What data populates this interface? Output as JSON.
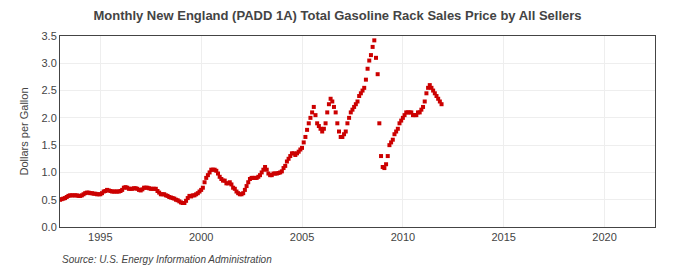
{
  "chart_data": {
    "type": "scatter",
    "title": "Monthly New England (PADD 1A) Total Gasoline Rack Sales Price by All Sellers",
    "ylabel": "Dollars per Gallon",
    "annotations": [
      "Source: U.S. Energy Information Administration"
    ],
    "color": "#cc0000",
    "marker": "square",
    "grid": true,
    "xlim": [
      1993.0,
      2022.5
    ],
    "ylim": [
      0.0,
      3.5
    ],
    "xticks": [
      1995,
      2000,
      2005,
      2010,
      2015,
      2020
    ],
    "yticks": [
      {
        "value": 0.0,
        "label": "0.0"
      },
      0.5,
      {
        "value": 1.0,
        "label": "1.0"
      },
      1.5,
      {
        "value": 2.0,
        "label": "2.0"
      },
      2.5,
      {
        "value": 3.0,
        "label": "3.0"
      },
      3.5
    ],
    "x": [
      1993.0,
      1993.083,
      1993.167,
      1993.25,
      1993.333,
      1993.417,
      1993.5,
      1993.583,
      1993.667,
      1993.75,
      1993.833,
      1993.917,
      1994.0,
      1994.083,
      1994.167,
      1994.25,
      1994.333,
      1994.417,
      1994.5,
      1994.583,
      1994.667,
      1994.75,
      1994.833,
      1994.917,
      1995.0,
      1995.083,
      1995.167,
      1995.25,
      1995.333,
      1995.417,
      1995.5,
      1995.583,
      1995.667,
      1995.75,
      1995.833,
      1995.917,
      1996.0,
      1996.083,
      1996.167,
      1996.25,
      1996.333,
      1996.417,
      1996.5,
      1996.583,
      1996.667,
      1996.75,
      1996.833,
      1996.917,
      1997.0,
      1997.083,
      1997.167,
      1997.25,
      1997.333,
      1997.417,
      1997.5,
      1997.583,
      1997.667,
      1997.75,
      1997.833,
      1997.917,
      1998.0,
      1998.083,
      1998.167,
      1998.25,
      1998.333,
      1998.417,
      1998.5,
      1998.583,
      1998.667,
      1998.75,
      1998.833,
      1998.917,
      1999.0,
      1999.083,
      1999.167,
      1999.25,
      1999.333,
      1999.417,
      1999.5,
      1999.583,
      1999.667,
      1999.75,
      1999.833,
      1999.917,
      2000.0,
      2000.083,
      2000.167,
      2000.25,
      2000.333,
      2000.417,
      2000.5,
      2000.583,
      2000.667,
      2000.75,
      2000.833,
      2000.917,
      2001.0,
      2001.083,
      2001.167,
      2001.25,
      2001.333,
      2001.417,
      2001.5,
      2001.583,
      2001.667,
      2001.75,
      2001.833,
      2001.917,
      2002.0,
      2002.083,
      2002.167,
      2002.25,
      2002.333,
      2002.417,
      2002.5,
      2002.583,
      2002.667,
      2002.75,
      2002.833,
      2002.917,
      2003.0,
      2003.083,
      2003.167,
      2003.25,
      2003.333,
      2003.417,
      2003.5,
      2003.583,
      2003.667,
      2003.75,
      2003.833,
      2003.917,
      2004.0,
      2004.083,
      2004.167,
      2004.25,
      2004.333,
      2004.417,
      2004.5,
      2004.583,
      2004.667,
      2004.75,
      2004.833,
      2004.917,
      2005.0,
      2005.083,
      2005.167,
      2005.25,
      2005.333,
      2005.417,
      2005.5,
      2005.583,
      2005.667,
      2005.75,
      2005.833,
      2005.917,
      2006.0,
      2006.083,
      2006.167,
      2006.25,
      2006.333,
      2006.417,
      2006.5,
      2006.583,
      2006.667,
      2006.75,
      2006.833,
      2006.917,
      2007.0,
      2007.083,
      2007.167,
      2007.25,
      2007.333,
      2007.417,
      2007.5,
      2007.583,
      2007.667,
      2007.75,
      2007.833,
      2007.917,
      2008.0,
      2008.083,
      2008.167,
      2008.25,
      2008.333,
      2008.417,
      2008.5,
      2008.583,
      2008.667,
      2008.75,
      2008.833,
      2008.917,
      2009.0,
      2009.083,
      2009.167,
      2009.25,
      2009.333,
      2009.417,
      2009.5,
      2009.583,
      2009.667,
      2009.75,
      2009.833,
      2009.917,
      2010.0,
      2010.083,
      2010.167,
      2010.25,
      2010.333,
      2010.417,
      2010.5,
      2010.583,
      2010.667,
      2010.75,
      2010.833,
      2010.917,
      2011.0,
      2011.083,
      2011.167,
      2011.25,
      2011.333,
      2011.417,
      2011.5,
      2011.583,
      2011.667,
      2011.75,
      2011.833,
      2011.917
    ],
    "values": [
      0.5,
      0.51,
      0.52,
      0.53,
      0.55,
      0.57,
      0.58,
      0.58,
      0.58,
      0.58,
      0.58,
      0.57,
      0.57,
      0.58,
      0.6,
      0.62,
      0.63,
      0.63,
      0.62,
      0.62,
      0.61,
      0.61,
      0.6,
      0.6,
      0.6,
      0.62,
      0.65,
      0.66,
      0.68,
      0.67,
      0.66,
      0.65,
      0.65,
      0.65,
      0.65,
      0.65,
      0.66,
      0.68,
      0.72,
      0.73,
      0.72,
      0.7,
      0.7,
      0.7,
      0.71,
      0.71,
      0.7,
      0.68,
      0.67,
      0.69,
      0.72,
      0.72,
      0.72,
      0.71,
      0.7,
      0.7,
      0.7,
      0.7,
      0.66,
      0.63,
      0.6,
      0.6,
      0.6,
      0.58,
      0.57,
      0.55,
      0.54,
      0.53,
      0.52,
      0.5,
      0.49,
      0.47,
      0.45,
      0.44,
      0.44,
      0.48,
      0.53,
      0.57,
      0.56,
      0.58,
      0.58,
      0.6,
      0.62,
      0.65,
      0.68,
      0.72,
      0.82,
      0.9,
      0.95,
      1.0,
      1.05,
      1.05,
      1.05,
      1.03,
      0.98,
      0.92,
      0.88,
      0.85,
      0.85,
      0.8,
      0.8,
      0.82,
      0.78,
      0.72,
      0.7,
      0.65,
      0.62,
      0.6,
      0.6,
      0.62,
      0.68,
      0.75,
      0.82,
      0.88,
      0.9,
      0.9,
      0.9,
      0.9,
      0.92,
      0.95,
      1.0,
      1.05,
      1.1,
      1.05,
      0.98,
      0.95,
      0.95,
      0.98,
      0.98,
      0.98,
      0.99,
      1.0,
      1.02,
      1.08,
      1.12,
      1.2,
      1.25,
      1.3,
      1.35,
      1.35,
      1.32,
      1.35,
      1.38,
      1.42,
      1.45,
      1.55,
      1.65,
      1.78,
      1.9,
      2.0,
      2.1,
      2.2,
      2.05,
      1.9,
      1.85,
      1.8,
      1.75,
      1.8,
      1.9,
      2.1,
      2.25,
      2.35,
      2.3,
      2.2,
      2.1,
      1.9,
      1.75,
      1.65,
      1.65,
      1.7,
      1.75,
      1.9,
      2.0,
      2.1,
      2.15,
      2.2,
      2.25,
      2.3,
      2.4,
      2.45,
      2.5,
      2.55,
      2.7,
      2.9,
      3.05,
      3.15,
      3.3,
      3.42,
      3.1,
      2.8,
      1.9,
      1.3,
      1.1,
      1.08,
      1.15,
      1.3,
      1.5,
      1.55,
      1.6,
      1.7,
      1.75,
      1.8,
      1.9,
      1.95,
      2.0,
      2.05,
      2.1,
      2.1,
      2.1,
      2.1,
      2.05,
      2.05,
      2.05,
      2.1,
      2.1,
      2.15,
      2.2,
      2.3,
      2.45,
      2.55,
      2.6,
      2.55,
      2.5,
      2.45,
      2.4,
      2.35,
      2.3,
      2.25
    ]
  }
}
